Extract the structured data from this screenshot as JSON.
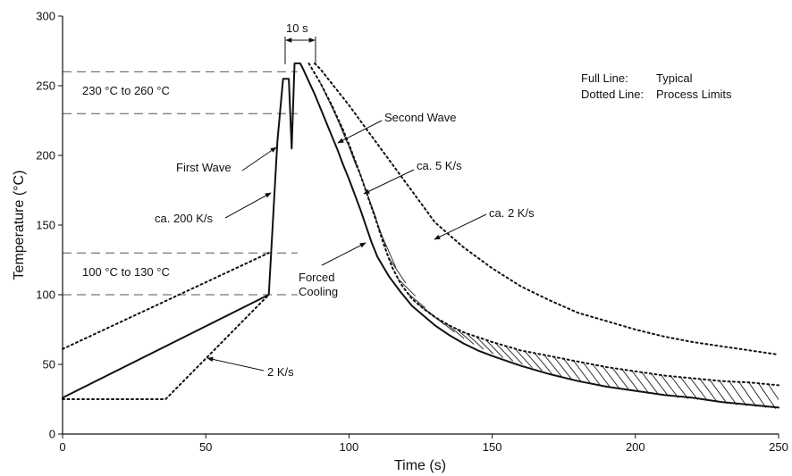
{
  "chart_data": {
    "type": "line",
    "title": "",
    "xlabel": "Time (s)",
    "ylabel": "Temperature (°C)",
    "xlim": [
      0,
      250
    ],
    "ylim": [
      0,
      300
    ],
    "x_ticks": [
      "0",
      "50",
      "100",
      "150",
      "200",
      "250"
    ],
    "y_ticks": [
      "0",
      "50",
      "100",
      "150",
      "200",
      "250",
      "300"
    ],
    "grid": false,
    "legend": {
      "line1_label": "Full Line:",
      "line1_value": "Typical",
      "line2_label": "Dotted Line:",
      "line2_value": "Process Limits",
      "position": "top-right"
    },
    "reference_lines": [
      {
        "y": 260,
        "style": "dashed"
      },
      {
        "y": 230,
        "style": "dashed"
      },
      {
        "y": 130,
        "style": "dashed"
      },
      {
        "y": 100,
        "style": "dashed"
      }
    ],
    "series": [
      {
        "style": "solid",
        "x": [
          0,
          72,
          75,
          77,
          79,
          80,
          81,
          82,
          83,
          84,
          86,
          88,
          90,
          92,
          94,
          96,
          98,
          100,
          102,
          104,
          106,
          108,
          110,
          114,
          118,
          122,
          126,
          130,
          135,
          140,
          145,
          150,
          160,
          170,
          180,
          190,
          200,
          210,
          220,
          230,
          240,
          250
        ],
        "y": [
          26,
          100,
          210,
          255,
          255,
          205,
          266,
          266,
          266,
          262,
          253,
          244,
          234,
          224,
          214,
          204,
          193,
          183,
          172,
          161,
          149,
          137,
          127,
          113,
          102,
          92,
          85,
          78,
          71,
          65,
          60,
          56,
          49,
          43,
          38,
          34,
          31,
          28,
          26,
          23,
          21,
          19
        ]
      },
      {
        "style": "dotted",
        "x": [
          0,
          36,
          72
        ],
        "y": [
          25,
          25,
          100
        ]
      },
      {
        "style": "dotted",
        "x": [
          0,
          72
        ],
        "y": [
          61,
          130
        ]
      },
      {
        "style": "dotted",
        "x": [
          86,
          88,
          90,
          92,
          94,
          96,
          98,
          100,
          102,
          104,
          106,
          108,
          110,
          112,
          115,
          118,
          122,
          126,
          130,
          135,
          140,
          150,
          160,
          170,
          180,
          190,
          200,
          210,
          220,
          230,
          240,
          250
        ],
        "y": [
          266,
          259,
          252,
          244,
          236,
          227,
          218,
          208,
          197,
          186,
          174,
          162,
          150,
          137,
          120,
          108,
          97,
          90,
          84,
          78,
          73,
          66,
          60,
          56,
          52,
          48,
          45,
          42,
          40,
          38,
          37,
          35
        ]
      },
      {
        "style": "dotted",
        "x": [
          88,
          90,
          95,
          100,
          105,
          110,
          115,
          120,
          125,
          130,
          140,
          150,
          160,
          170,
          180,
          190,
          200,
          210,
          220,
          230,
          240,
          250
        ],
        "y": [
          266,
          262,
          249,
          236,
          222,
          208,
          194,
          180,
          166,
          152,
          134,
          119,
          106,
          96,
          87,
          81,
          75,
          70,
          66,
          63,
          60,
          57
        ]
      }
    ],
    "annotations": [
      {
        "id": "range-high",
        "text": "230 °C to 260 °C"
      },
      {
        "id": "range-low",
        "text": "100 °C to 130 °C"
      },
      {
        "id": "first-wave",
        "text": "First Wave"
      },
      {
        "id": "second-wave",
        "text": "Second Wave"
      },
      {
        "id": "rate-200",
        "text": "ca. 200 K/s"
      },
      {
        "id": "rate-5",
        "text": "ca. 5 K/s"
      },
      {
        "id": "rate-2a",
        "text": "ca. 2 K/s"
      },
      {
        "id": "rate-2b",
        "text": "2 K/s"
      },
      {
        "id": "forced-1",
        "text": "Forced"
      },
      {
        "id": "forced-2",
        "text": "Cooling"
      },
      {
        "id": "ten-s",
        "text": "10 s"
      }
    ]
  }
}
